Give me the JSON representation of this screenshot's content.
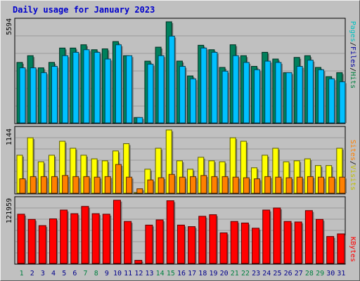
{
  "title": "Daily usage for January 2023",
  "colors": {
    "hits": "#00805c",
    "files": "#00c0ff",
    "sites": "#ff8000",
    "visits": "#ffff00",
    "kbytes": "#ff0000",
    "panel": "#c0c0c0",
    "grid": "#9a9a9a",
    "weekday": "#00008b",
    "weekend": "#008040"
  },
  "chart_data": [
    {
      "type": "bar",
      "title": "Daily usage for January 2023",
      "ylabel_max": "5594",
      "legend": [
        {
          "label": "Pages",
          "color": "#00c0c0"
        },
        {
          "label": "Files",
          "color": "#0000a0"
        },
        {
          "label": "Hits",
          "color": "#008040"
        }
      ],
      "categories": [
        "1",
        "2",
        "3",
        "4",
        "5",
        "6",
        "7",
        "8",
        "9",
        "10",
        "11",
        "12",
        "13",
        "14",
        "15",
        "16",
        "17",
        "18",
        "19",
        "20",
        "21",
        "22",
        "23",
        "24",
        "25",
        "26",
        "27",
        "28",
        "29",
        "30",
        "31"
      ],
      "series": [
        {
          "name": "Hits",
          "values": [
            3345,
            3719,
            3047,
            3347,
            4142,
            4142,
            4323,
            4049,
            4096,
            4500,
            3719,
            300,
            3417,
            4190,
            5594,
            3420,
            2600,
            4296,
            4049,
            3070,
            4323,
            3719,
            3129,
            3906,
            3534,
            2780,
            3623,
            3719,
            3070,
            2560,
            2780
          ]
        },
        {
          "name": "Files",
          "values": [
            3047,
            3047,
            2780,
            3129,
            3719,
            3906,
            4049,
            3906,
            3534,
            4323,
            3719,
            300,
            3250,
            3719,
            4800,
            3129,
            2441,
            4142,
            3906,
            2862,
            3719,
            3345,
            2942,
            3417,
            3345,
            2780,
            3129,
            3470,
            2942,
            2441,
            2275
          ]
        }
      ],
      "ylim": [
        0,
        5594
      ]
    },
    {
      "type": "bar",
      "ylabel_max": "1144",
      "legend": [
        {
          "label": "Sites",
          "color": "#ff8000"
        },
        {
          "label": "Visits",
          "color": "#c0c000"
        }
      ],
      "categories": [
        "1",
        "2",
        "3",
        "4",
        "5",
        "6",
        "7",
        "8",
        "9",
        "10",
        "11",
        "12",
        "13",
        "14",
        "15",
        "16",
        "17",
        "18",
        "19",
        "20",
        "21",
        "22",
        "23",
        "24",
        "25",
        "26",
        "27",
        "28",
        "29",
        "30",
        "31"
      ],
      "series": [
        {
          "name": "Visits",
          "values": [
            687,
            1003,
            568,
            687,
            940,
            813,
            687,
            622,
            586,
            765,
            896,
            0,
            434,
            813,
            1144,
            586,
            434,
            650,
            586,
            568,
            1003,
            940,
            460,
            687,
            813,
            568,
            586,
            622,
            500,
            500,
            813
          ]
        },
        {
          "name": "Sites",
          "values": [
            260,
            300,
            300,
            300,
            320,
            300,
            300,
            290,
            300,
            520,
            290,
            80,
            240,
            280,
            340,
            290,
            300,
            320,
            300,
            300,
            290,
            280,
            260,
            300,
            290,
            280,
            290,
            300,
            290,
            290,
            290
          ]
        }
      ],
      "ylim": [
        0,
        1144
      ]
    },
    {
      "type": "bar",
      "ylabel_max": "121959",
      "legend": [
        {
          "label": "KBytes",
          "color": "#ff0000"
        }
      ],
      "categories": [
        "1",
        "2",
        "3",
        "4",
        "5",
        "6",
        "7",
        "8",
        "9",
        "10",
        "11",
        "12",
        "13",
        "14",
        "15",
        "16",
        "17",
        "18",
        "19",
        "20",
        "21",
        "22",
        "23",
        "24",
        "25",
        "26",
        "27",
        "28",
        "29",
        "30",
        "31"
      ],
      "series": [
        {
          "name": "KBytes",
          "values": [
            95000,
            85000,
            73000,
            86000,
            103000,
            96000,
            110000,
            96000,
            95000,
            121959,
            81000,
            6000,
            74000,
            84000,
            121000,
            74000,
            71000,
            91000,
            94000,
            59000,
            81000,
            78000,
            68000,
            103000,
            107000,
            81000,
            80000,
            102000,
            85000,
            52000,
            57000
          ]
        }
      ],
      "ylim": [
        0,
        121959
      ]
    }
  ],
  "weekend_days": [
    "1",
    "7",
    "8",
    "14",
    "15",
    "21",
    "22",
    "28",
    "29"
  ]
}
